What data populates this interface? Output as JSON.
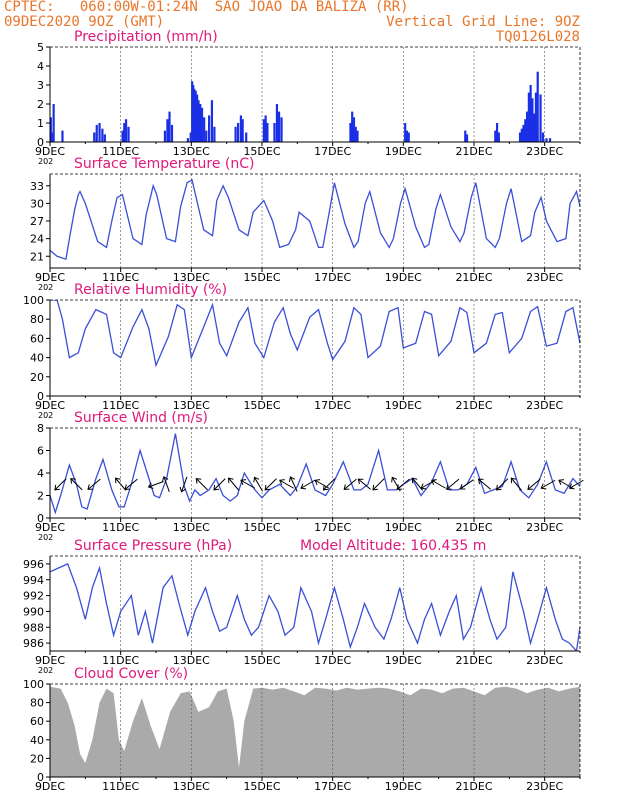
{
  "header": {
    "line1_left": "CPTEC:   060:00W-01:24N  SAO JOAO DA BALIZA (RR)",
    "line2_left": "09DEC2020 9OZ (GMT)",
    "line2_right": "Vertical Grid Line: 9OZ",
    "line3_right": "TQ0126L028"
  },
  "colors": {
    "header": "#e8762b",
    "title": "#e0197d",
    "line": "#3a4fd8",
    "bar": "#1a2fe6",
    "cloud": "#aaaaaa",
    "arrow": "#000000"
  },
  "x_axis": {
    "min": 0,
    "max": 15,
    "unit": "days from 09DEC",
    "labels": [
      {
        "pos": 0,
        "text": "9DEC"
      },
      {
        "pos": 2,
        "text": "11DEC"
      },
      {
        "pos": 4,
        "text": "13DEC"
      },
      {
        "pos": 6,
        "text": "15DEC"
      },
      {
        "pos": 8,
        "text": "17DEC"
      },
      {
        "pos": 10,
        "text": "19DEC"
      },
      {
        "pos": 12,
        "text": "21DEC"
      },
      {
        "pos": 14,
        "text": "23DEC"
      }
    ],
    "year_label": "202"
  },
  "chart_data": [
    {
      "type": "bar",
      "title": "Precipitation (mm/h)",
      "ylim": [
        0,
        5
      ],
      "yticks": [
        0,
        1,
        2,
        3,
        4,
        5
      ],
      "x": [
        0.02,
        0.06,
        0.1,
        0.35,
        1.25,
        1.32,
        1.4,
        1.48,
        1.55,
        2.05,
        2.1,
        2.15,
        2.22,
        3.25,
        3.32,
        3.38,
        3.45,
        3.9,
        3.98,
        4.02,
        4.05,
        4.08,
        4.12,
        4.16,
        4.2,
        4.25,
        4.3,
        4.36,
        4.42,
        4.5,
        4.58,
        4.65,
        5.25,
        5.32,
        5.4,
        5.45,
        5.55,
        6.05,
        6.1,
        6.15,
        6.35,
        6.42,
        6.48,
        6.55,
        8.5,
        8.55,
        8.6,
        8.65,
        8.7,
        10.05,
        10.1,
        10.15,
        11.75,
        11.8,
        12.6,
        12.65,
        12.7,
        13.3,
        13.35,
        13.4,
        13.45,
        13.5,
        13.55,
        13.6,
        13.65,
        13.7,
        13.75,
        13.8,
        13.88,
        13.95,
        14.05,
        14.15
      ],
      "values": [
        1.3,
        0.5,
        2.0,
        0.6,
        0.5,
        0.9,
        1.0,
        0.7,
        0.4,
        0.6,
        1.0,
        1.2,
        0.8,
        0.6,
        1.2,
        1.6,
        0.9,
        0.2,
        0.5,
        3.2,
        3.0,
        2.8,
        2.7,
        2.5,
        2.2,
        2.0,
        1.8,
        1.3,
        0.6,
        1.4,
        2.2,
        0.8,
        0.8,
        1.0,
        1.4,
        1.2,
        0.5,
        1.2,
        1.4,
        1.0,
        1.0,
        2.0,
        1.6,
        1.3,
        1.0,
        1.6,
        1.3,
        0.8,
        0.6,
        1.0,
        0.6,
        0.5,
        0.6,
        0.4,
        0.6,
        1.0,
        0.5,
        0.5,
        0.7,
        0.9,
        1.2,
        1.6,
        2.6,
        3.0,
        2.3,
        1.5,
        2.6,
        3.7,
        2.5,
        0.5,
        0.2,
        0.2
      ]
    },
    {
      "type": "line",
      "title": "Surface Temperature (nC)",
      "ylim": [
        19,
        35
      ],
      "yticks": [
        21,
        24,
        27,
        30,
        33
      ],
      "x": [
        0,
        0.2,
        0.45,
        0.55,
        0.7,
        0.8,
        0.85,
        1.0,
        1.35,
        1.6,
        1.75,
        1.9,
        2.05,
        2.35,
        2.6,
        2.72,
        2.92,
        3.02,
        3.3,
        3.55,
        3.7,
        3.88,
        4.02,
        4.35,
        4.6,
        4.72,
        4.9,
        5.05,
        5.35,
        5.6,
        5.75,
        6.05,
        6.3,
        6.5,
        6.75,
        6.95,
        7.05,
        7.35,
        7.6,
        7.72,
        7.92,
        8.05,
        8.35,
        8.6,
        8.72,
        8.92,
        9.05,
        9.35,
        9.6,
        9.72,
        9.92,
        10.05,
        10.35,
        10.6,
        10.72,
        10.92,
        11.05,
        11.35,
        11.6,
        11.72,
        11.92,
        12.05,
        12.35,
        12.6,
        12.72,
        12.92,
        13.05,
        13.35,
        13.6,
        13.72,
        13.9,
        14.05,
        14.35,
        14.6,
        14.72,
        14.9,
        15.0
      ],
      "values": [
        22.0,
        21.0,
        20.5,
        24.0,
        29.0,
        31.5,
        32.0,
        30.0,
        23.5,
        22.5,
        27.0,
        31.0,
        31.5,
        24.0,
        23.0,
        28.0,
        33.0,
        31.5,
        24.0,
        23.5,
        29.5,
        33.5,
        34.0,
        25.5,
        24.5,
        30.5,
        33.0,
        31.0,
        25.5,
        24.5,
        28.5,
        30.5,
        27.0,
        22.5,
        23.0,
        25.5,
        28.5,
        27.0,
        22.5,
        22.5,
        29.0,
        33.5,
        26.5,
        22.5,
        23.5,
        30.0,
        32.0,
        25.0,
        22.5,
        24.0,
        30.0,
        32.5,
        26.0,
        22.5,
        23.0,
        29.0,
        31.5,
        26.0,
        23.5,
        25.0,
        31.0,
        33.5,
        24.0,
        22.5,
        24.0,
        30.0,
        32.5,
        23.5,
        24.5,
        28.5,
        31.0,
        27.0,
        23.5,
        24.0,
        30.0,
        32.0,
        29.5
      ]
    },
    {
      "type": "line",
      "title": "Relative Humidity (%)",
      "ylim": [
        0,
        100
      ],
      "yticks": [
        0,
        20,
        40,
        60,
        80,
        100
      ],
      "x": [
        0,
        0.2,
        0.35,
        0.55,
        0.8,
        1.0,
        1.3,
        1.6,
        1.8,
        2.0,
        2.35,
        2.6,
        2.8,
        3.0,
        3.35,
        3.6,
        3.8,
        4.0,
        4.35,
        4.6,
        4.8,
        5.0,
        5.35,
        5.6,
        5.8,
        6.05,
        6.35,
        6.6,
        6.8,
        7.0,
        7.35,
        7.6,
        7.85,
        8.0,
        8.35,
        8.6,
        8.8,
        9.0,
        9.35,
        9.6,
        9.85,
        10.0,
        10.35,
        10.6,
        10.8,
        11.0,
        11.35,
        11.6,
        11.8,
        12.0,
        12.35,
        12.6,
        12.8,
        13.0,
        13.35,
        13.6,
        13.8,
        14.05,
        14.35,
        14.6,
        14.8,
        15.0
      ],
      "values": [
        100,
        100,
        80,
        40,
        45,
        70,
        90,
        85,
        45,
        40,
        72,
        90,
        70,
        32,
        62,
        95,
        90,
        40,
        72,
        95,
        55,
        42,
        77,
        92,
        55,
        40,
        77,
        92,
        65,
        48,
        82,
        90,
        55,
        38,
        57,
        92,
        85,
        40,
        52,
        88,
        92,
        50,
        55,
        88,
        85,
        42,
        57,
        92,
        87,
        45,
        55,
        85,
        87,
        45,
        60,
        88,
        93,
        52,
        55,
        88,
        92,
        55
      ]
    },
    {
      "type": "line",
      "title": "Surface Wind (m/s)",
      "ylim": [
        0,
        8
      ],
      "yticks": [
        0,
        2,
        4,
        6,
        8
      ],
      "x": [
        0,
        0.15,
        0.3,
        0.55,
        0.75,
        0.9,
        1.05,
        1.3,
        1.5,
        1.75,
        1.95,
        2.1,
        2.3,
        2.55,
        2.75,
        2.95,
        3.1,
        3.3,
        3.55,
        3.8,
        3.95,
        4.1,
        4.25,
        4.5,
        4.7,
        4.9,
        5.1,
        5.3,
        5.5,
        5.8,
        6.0,
        6.2,
        6.5,
        6.8,
        7.0,
        7.25,
        7.5,
        7.8,
        8.0,
        8.3,
        8.6,
        8.8,
        9.0,
        9.3,
        9.55,
        9.8,
        10.0,
        10.25,
        10.5,
        10.8,
        11.05,
        11.3,
        11.55,
        11.8,
        12.05,
        12.3,
        12.55,
        12.8,
        13.05,
        13.3,
        13.55,
        13.8,
        14.05,
        14.3,
        14.55,
        14.8,
        15.0
      ],
      "values": [
        2.0,
        0.5,
        2.0,
        4.7,
        3.0,
        1.0,
        0.8,
        3.5,
        5.2,
        2.5,
        1.0,
        1.0,
        3.0,
        6.0,
        4.0,
        2.0,
        1.8,
        3.5,
        7.5,
        2.8,
        1.5,
        2.5,
        2.0,
        2.5,
        3.5,
        2.0,
        1.5,
        2.0,
        4.0,
        2.5,
        1.8,
        2.5,
        3.0,
        2.0,
        2.8,
        4.8,
        2.5,
        2.0,
        3.0,
        5.0,
        2.5,
        2.5,
        3.0,
        6.0,
        2.5,
        2.5,
        3.0,
        3.5,
        2.0,
        3.2,
        5.0,
        2.5,
        2.5,
        3.0,
        4.5,
        2.2,
        2.5,
        2.8,
        5.0,
        2.5,
        1.8,
        3.0,
        5.0,
        2.5,
        2.2,
        3.5,
        2.8
      ]
    },
    {
      "type": "line",
      "title": "Surface Pressure (hPa)",
      "ylim": [
        985,
        997
      ],
      "yticks": [
        986,
        988,
        990,
        992,
        994,
        996
      ],
      "x": [
        0,
        0.25,
        0.5,
        0.75,
        1.0,
        1.2,
        1.4,
        1.6,
        1.8,
        2.0,
        2.3,
        2.5,
        2.7,
        2.9,
        3.2,
        3.45,
        3.65,
        3.9,
        4.1,
        4.4,
        4.6,
        4.8,
        5.0,
        5.3,
        5.5,
        5.7,
        5.9,
        6.2,
        6.45,
        6.65,
        6.9,
        7.1,
        7.4,
        7.6,
        7.8,
        8.05,
        8.3,
        8.5,
        8.7,
        8.9,
        9.2,
        9.45,
        9.65,
        9.9,
        10.1,
        10.4,
        10.6,
        10.8,
        11.05,
        11.3,
        11.5,
        11.7,
        11.9,
        12.2,
        12.45,
        12.65,
        12.9,
        13.1,
        13.4,
        13.6,
        13.8,
        14.05,
        14.3,
        14.5,
        14.7,
        14.9,
        15.0
      ],
      "values": [
        995,
        995.5,
        996,
        993,
        989,
        993,
        995.5,
        991,
        987,
        990,
        992,
        987,
        990,
        986,
        993,
        994.5,
        991,
        987,
        990,
        993,
        990,
        987.5,
        988,
        992,
        989,
        987,
        988,
        992,
        990,
        987,
        988,
        993,
        990,
        986,
        989,
        993,
        989,
        985.5,
        988,
        991,
        988,
        986.5,
        989,
        993,
        989,
        986,
        989,
        991,
        987,
        990,
        992,
        986.5,
        988,
        993,
        989,
        986.5,
        988,
        995,
        990,
        986,
        989,
        993,
        989,
        986.5,
        986,
        985,
        988
      ]
    },
    {
      "type": "area",
      "title": "Cloud Cover (%)",
      "ylim": [
        0,
        100
      ],
      "yticks": [
        0,
        20,
        40,
        60,
        80,
        100
      ],
      "x": [
        0,
        0.3,
        0.5,
        0.7,
        0.85,
        1.0,
        1.2,
        1.4,
        1.6,
        1.8,
        1.95,
        2.1,
        2.35,
        2.6,
        2.85,
        3.1,
        3.4,
        3.7,
        3.95,
        4.2,
        4.5,
        4.75,
        5.0,
        5.2,
        5.35,
        5.5,
        5.75,
        6.0,
        6.3,
        6.6,
        6.9,
        7.2,
        7.5,
        7.8,
        8.1,
        8.4,
        8.7,
        9.0,
        9.3,
        9.6,
        9.9,
        10.2,
        10.5,
        10.8,
        11.1,
        11.4,
        11.7,
        12.0,
        12.3,
        12.6,
        12.9,
        13.2,
        13.5,
        13.8,
        14.1,
        14.4,
        14.7,
        15.0
      ],
      "values": [
        97,
        95,
        80,
        55,
        25,
        15,
        40,
        80,
        95,
        90,
        40,
        28,
        60,
        85,
        55,
        30,
        70,
        90,
        92,
        70,
        75,
        92,
        95,
        60,
        10,
        60,
        95,
        96,
        94,
        96,
        92,
        88,
        96,
        95,
        93,
        96,
        94,
        95,
        96,
        95,
        92,
        88,
        95,
        94,
        90,
        95,
        96,
        92,
        88,
        96,
        97,
        95,
        90,
        94,
        96,
        92,
        95,
        97
      ]
    }
  ],
  "annotations": {
    "model_altitude": "Model Altitude: 160.435  m"
  },
  "wind_arrows": {
    "x": [
      0.3,
      0.75,
      1.25,
      2.0,
      2.3,
      3.0,
      3.3,
      3.8,
      4.3,
      4.8,
      5.2,
      5.6,
      5.9,
      6.25,
      6.7,
      6.9,
      7.3,
      7.7,
      7.9,
      8.5,
      8.9,
      9.3,
      9.8,
      10.0,
      10.4,
      10.7,
      11.0,
      11.4,
      11.8,
      12.3,
      12.8,
      13.2,
      13.7,
      14.1,
      14.6,
      14.9
    ],
    "dir": [
      225,
      315,
      230,
      320,
      230,
      250,
      340,
      200,
      315,
      225,
      320,
      300,
      330,
      225,
      300,
      335,
      240,
      300,
      225,
      230,
      310,
      225,
      330,
      230,
      320,
      240,
      300,
      230,
      235,
      310,
      225,
      320,
      230,
      240,
      300,
      240
    ]
  }
}
